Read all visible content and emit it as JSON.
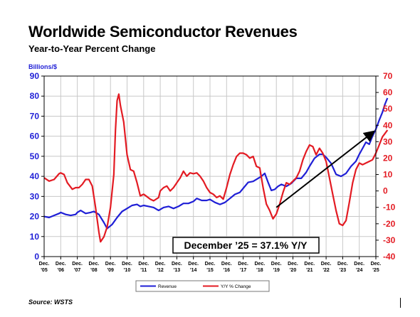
{
  "header": {
    "title": "Worldwide Semiconductor Revenues",
    "subtitle": "Year-to-Year Percent Change"
  },
  "footer": {
    "source": "Source: WSTS"
  },
  "chart_data": {
    "type": "line",
    "left_axis": {
      "label": "Billions/$",
      "range": [
        0,
        90
      ],
      "ticks": [
        0,
        10,
        20,
        30,
        40,
        50,
        60,
        70,
        80,
        90
      ],
      "color": "#1f1fd6"
    },
    "right_axis": {
      "range": [
        -40,
        70
      ],
      "ticks": [
        -40,
        -30,
        -20,
        -10,
        0,
        10,
        20,
        30,
        40,
        50,
        60,
        70
      ],
      "color": "#e31b23"
    },
    "x_axis": {
      "ticks": [
        [
          "Dec.",
          "'05"
        ],
        [
          "Dec.",
          "'06"
        ],
        [
          "Dec.",
          "'07"
        ],
        [
          "Dec.",
          "'08"
        ],
        [
          "Dec.",
          "'09"
        ],
        [
          "Dec.",
          "'10"
        ],
        [
          "Dec.",
          "'11"
        ],
        [
          "Dec.",
          "'12"
        ],
        [
          "Dec.",
          "'13"
        ],
        [
          "Dec.",
          "'14"
        ],
        [
          "Dec.",
          "'15"
        ],
        [
          "Dec.",
          "'16"
        ],
        [
          "Dec.",
          "'17"
        ],
        [
          "Dec.",
          "'18"
        ],
        [
          "Dec.",
          "'19"
        ],
        [
          "Dec.",
          "'20"
        ],
        [
          "Dec.",
          "'21"
        ],
        [
          "Dec.",
          "'22"
        ],
        [
          "Dec.",
          "'23"
        ],
        [
          "Dec.",
          "'24"
        ],
        [
          "Dec.",
          "'25"
        ]
      ]
    },
    "grid": true,
    "annotation": {
      "text": "December ’25 = 37.1% Y/Y",
      "arrow": {
        "from": [
          2019.0,
          -10
        ],
        "to": [
          2025.0,
          37.1
        ]
      }
    },
    "legend": {
      "position": "bottom",
      "entries": [
        "Revenue",
        "Y/Y % Change"
      ]
    },
    "series": [
      {
        "name": "Revenue",
        "axis": "left",
        "color": "#1f1fd6",
        "points": [
          [
            2005.0,
            20.0
          ],
          [
            2005.3,
            19.5
          ],
          [
            2005.6,
            20.5
          ],
          [
            2005.9,
            21.5
          ],
          [
            2006.0,
            22.0
          ],
          [
            2006.3,
            21.0
          ],
          [
            2006.6,
            20.5
          ],
          [
            2006.9,
            21.0
          ],
          [
            2007.0,
            22.0
          ],
          [
            2007.2,
            23.0
          ],
          [
            2007.5,
            21.5
          ],
          [
            2007.8,
            22.0
          ],
          [
            2008.0,
            22.5
          ],
          [
            2008.3,
            21.0
          ],
          [
            2008.6,
            17.0
          ],
          [
            2008.8,
            14.0
          ],
          [
            2009.1,
            16.0
          ],
          [
            2009.4,
            19.5
          ],
          [
            2009.7,
            22.5
          ],
          [
            2010.0,
            24.0
          ],
          [
            2010.3,
            25.5
          ],
          [
            2010.6,
            26.0
          ],
          [
            2010.8,
            25.0
          ],
          [
            2011.0,
            25.5
          ],
          [
            2011.3,
            25.0
          ],
          [
            2011.6,
            24.5
          ],
          [
            2011.9,
            23.0
          ],
          [
            2012.2,
            24.5
          ],
          [
            2012.5,
            25.0
          ],
          [
            2012.8,
            24.0
          ],
          [
            2013.1,
            25.0
          ],
          [
            2013.4,
            26.5
          ],
          [
            2013.7,
            26.5
          ],
          [
            2014.0,
            27.5
          ],
          [
            2014.2,
            29.0
          ],
          [
            2014.5,
            28.0
          ],
          [
            2014.8,
            28.0
          ],
          [
            2015.0,
            28.5
          ],
          [
            2015.3,
            27.0
          ],
          [
            2015.6,
            26.0
          ],
          [
            2015.9,
            27.0
          ],
          [
            2016.2,
            29.0
          ],
          [
            2016.5,
            31.0
          ],
          [
            2016.8,
            32.0
          ],
          [
            2017.0,
            34.0
          ],
          [
            2017.3,
            37.0
          ],
          [
            2017.6,
            37.5
          ],
          [
            2017.9,
            39.0
          ],
          [
            2018.1,
            40.0
          ],
          [
            2018.3,
            41.5
          ],
          [
            2018.5,
            37.0
          ],
          [
            2018.7,
            33.0
          ],
          [
            2018.9,
            33.5
          ],
          [
            2019.1,
            35.0
          ],
          [
            2019.3,
            36.0
          ],
          [
            2019.6,
            35.0
          ],
          [
            2019.9,
            36.5
          ],
          [
            2020.2,
            39.0
          ],
          [
            2020.5,
            39.0
          ],
          [
            2020.8,
            42.0
          ],
          [
            2021.0,
            45.0
          ],
          [
            2021.3,
            49.0
          ],
          [
            2021.6,
            51.0
          ],
          [
            2021.8,
            51.0
          ],
          [
            2022.0,
            49.5
          ],
          [
            2022.3,
            46.5
          ],
          [
            2022.6,
            41.0
          ],
          [
            2022.9,
            40.0
          ],
          [
            2023.2,
            41.5
          ],
          [
            2023.5,
            45.0
          ],
          [
            2023.8,
            47.5
          ],
          [
            2024.0,
            51.0
          ],
          [
            2024.2,
            54.0
          ],
          [
            2024.4,
            57.0
          ],
          [
            2024.6,
            56.0
          ],
          [
            2024.8,
            60.0
          ],
          [
            2025.0,
            63.5
          ],
          [
            2025.2,
            68.0
          ],
          [
            2025.4,
            72.0
          ],
          [
            2025.55,
            76.0
          ],
          [
            2025.7,
            79.0
          ]
        ]
      },
      {
        "name": "Y/Y % Change",
        "axis": "right",
        "color": "#e31b23",
        "points": [
          [
            2005.0,
            8.0
          ],
          [
            2005.3,
            6.0
          ],
          [
            2005.6,
            7.0
          ],
          [
            2005.9,
            10.5
          ],
          [
            2006.0,
            11.0
          ],
          [
            2006.2,
            10.0
          ],
          [
            2006.4,
            5.0
          ],
          [
            2006.7,
            1.0
          ],
          [
            2006.9,
            2.0
          ],
          [
            2007.1,
            2.0
          ],
          [
            2007.3,
            4.0
          ],
          [
            2007.5,
            7.0
          ],
          [
            2007.7,
            7.0
          ],
          [
            2007.9,
            3.0
          ],
          [
            2008.1,
            -10.0
          ],
          [
            2008.3,
            -25.0
          ],
          [
            2008.4,
            -31.0
          ],
          [
            2008.6,
            -28.0
          ],
          [
            2008.8,
            -22.0
          ],
          [
            2009.0,
            -10.0
          ],
          [
            2009.2,
            10.0
          ],
          [
            2009.3,
            37.0
          ],
          [
            2009.4,
            55.0
          ],
          [
            2009.5,
            59.0
          ],
          [
            2009.6,
            52.0
          ],
          [
            2009.8,
            42.0
          ],
          [
            2010.0,
            22.0
          ],
          [
            2010.2,
            13.0
          ],
          [
            2010.4,
            12.0
          ],
          [
            2010.6,
            5.0
          ],
          [
            2010.8,
            -3.0
          ],
          [
            2011.0,
            -2.0
          ],
          [
            2011.2,
            -3.5
          ],
          [
            2011.4,
            -5.0
          ],
          [
            2011.6,
            -6.0
          ],
          [
            2011.9,
            -4.0
          ],
          [
            2012.0,
            0.0
          ],
          [
            2012.2,
            2.0
          ],
          [
            2012.4,
            3.0
          ],
          [
            2012.6,
            0.0
          ],
          [
            2012.8,
            2.0
          ],
          [
            2013.0,
            5.0
          ],
          [
            2013.2,
            8.0
          ],
          [
            2013.4,
            12.0
          ],
          [
            2013.6,
            9.0
          ],
          [
            2013.8,
            11.0
          ],
          [
            2014.0,
            10.5
          ],
          [
            2014.2,
            11.0
          ],
          [
            2014.4,
            9.0
          ],
          [
            2014.6,
            6.0
          ],
          [
            2014.8,
            2.0
          ],
          [
            2015.0,
            -1.0
          ],
          [
            2015.2,
            -2.0
          ],
          [
            2015.4,
            -4.0
          ],
          [
            2015.6,
            -3.0
          ],
          [
            2015.8,
            -5.0
          ],
          [
            2016.0,
            2.0
          ],
          [
            2016.2,
            10.0
          ],
          [
            2016.4,
            16.0
          ],
          [
            2016.6,
            21.0
          ],
          [
            2016.8,
            23.0
          ],
          [
            2017.0,
            23.0
          ],
          [
            2017.2,
            22.0
          ],
          [
            2017.4,
            20.0
          ],
          [
            2017.6,
            21.0
          ],
          [
            2017.8,
            15.0
          ],
          [
            2018.0,
            14.0
          ],
          [
            2018.2,
            2.0
          ],
          [
            2018.4,
            -8.0
          ],
          [
            2018.6,
            -12.0
          ],
          [
            2018.8,
            -17.0
          ],
          [
            2019.0,
            -14.0
          ],
          [
            2019.2,
            -8.0
          ],
          [
            2019.4,
            -1.0
          ],
          [
            2019.6,
            5.0
          ],
          [
            2019.8,
            4.0
          ],
          [
            2020.0,
            6.0
          ],
          [
            2020.2,
            8.0
          ],
          [
            2020.4,
            12.0
          ],
          [
            2020.6,
            19.0
          ],
          [
            2020.8,
            24.0
          ],
          [
            2021.0,
            28.0
          ],
          [
            2021.2,
            27.0
          ],
          [
            2021.4,
            22.0
          ],
          [
            2021.6,
            26.0
          ],
          [
            2021.8,
            23.0
          ],
          [
            2022.0,
            18.0
          ],
          [
            2022.2,
            8.0
          ],
          [
            2022.4,
            -2.0
          ],
          [
            2022.6,
            -12.0
          ],
          [
            2022.8,
            -20.0
          ],
          [
            2023.0,
            -21.0
          ],
          [
            2023.2,
            -18.0
          ],
          [
            2023.4,
            -7.0
          ],
          [
            2023.6,
            5.0
          ],
          [
            2023.8,
            13.0
          ],
          [
            2024.0,
            17.0
          ],
          [
            2024.2,
            16.0
          ],
          [
            2024.4,
            17.0
          ],
          [
            2024.6,
            18.0
          ],
          [
            2024.8,
            19.0
          ],
          [
            2025.0,
            23.0
          ],
          [
            2025.2,
            28.0
          ],
          [
            2025.4,
            33.0
          ],
          [
            2025.55,
            35.0
          ],
          [
            2025.7,
            37.1
          ]
        ]
      }
    ]
  }
}
